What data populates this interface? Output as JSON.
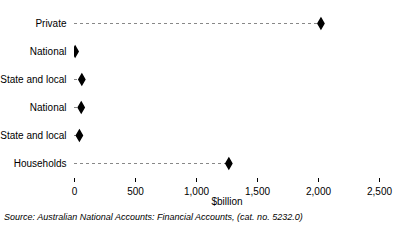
{
  "chart_data": {
    "type": "dot",
    "orientation": "horizontal",
    "categories": [
      "Private",
      "National",
      "State and local",
      "National",
      "State and local",
      "Households"
    ],
    "values": [
      2020,
      5,
      60,
      55,
      40,
      1265
    ],
    "color": "#000000",
    "marker": "diamond",
    "line_style": "dashed",
    "xlabel": "$billion",
    "xlim": [
      0,
      2500
    ],
    "xticks": [
      0,
      500,
      1000,
      1500,
      2000,
      2500
    ],
    "grid": false,
    "source": "Source: Australian National Accounts: Financial Accounts, (cat. no. 5232.0)"
  }
}
